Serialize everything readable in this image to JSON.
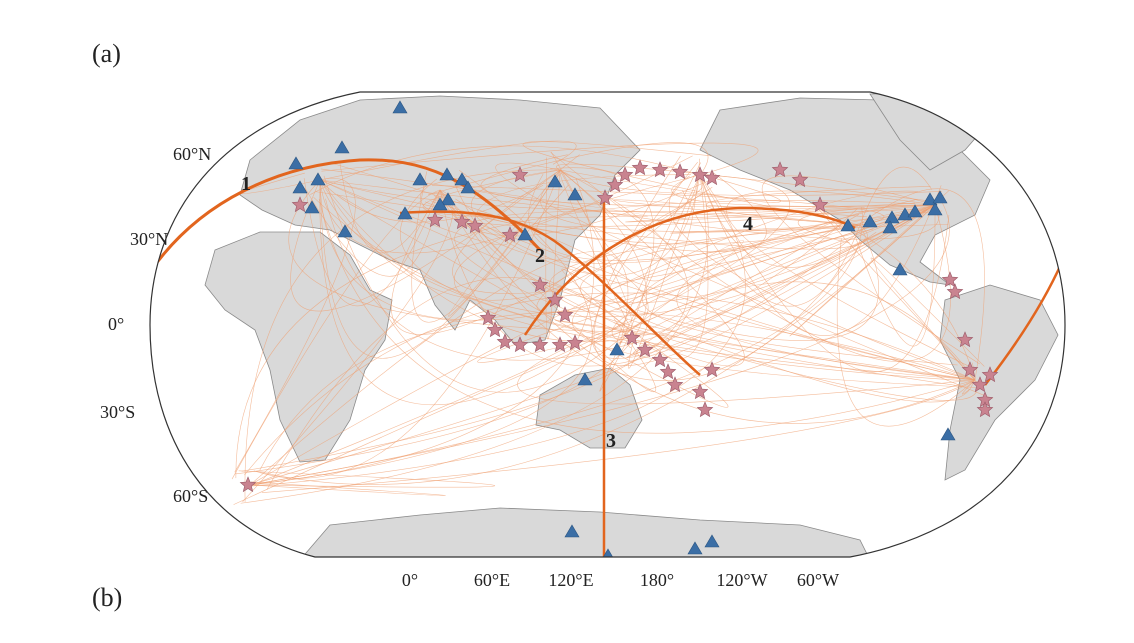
{
  "panel_labels": [
    "(a)",
    "(b)"
  ],
  "map": {
    "latitude_labels": [
      "60°N",
      "30°N",
      "0°",
      "30°S",
      "60°S"
    ],
    "longitude_labels": [
      "0°",
      "60°E",
      "120°E",
      "180°",
      "120°W",
      "60°W"
    ],
    "path_labels": [
      "1",
      "2",
      "3",
      "4"
    ]
  }
}
